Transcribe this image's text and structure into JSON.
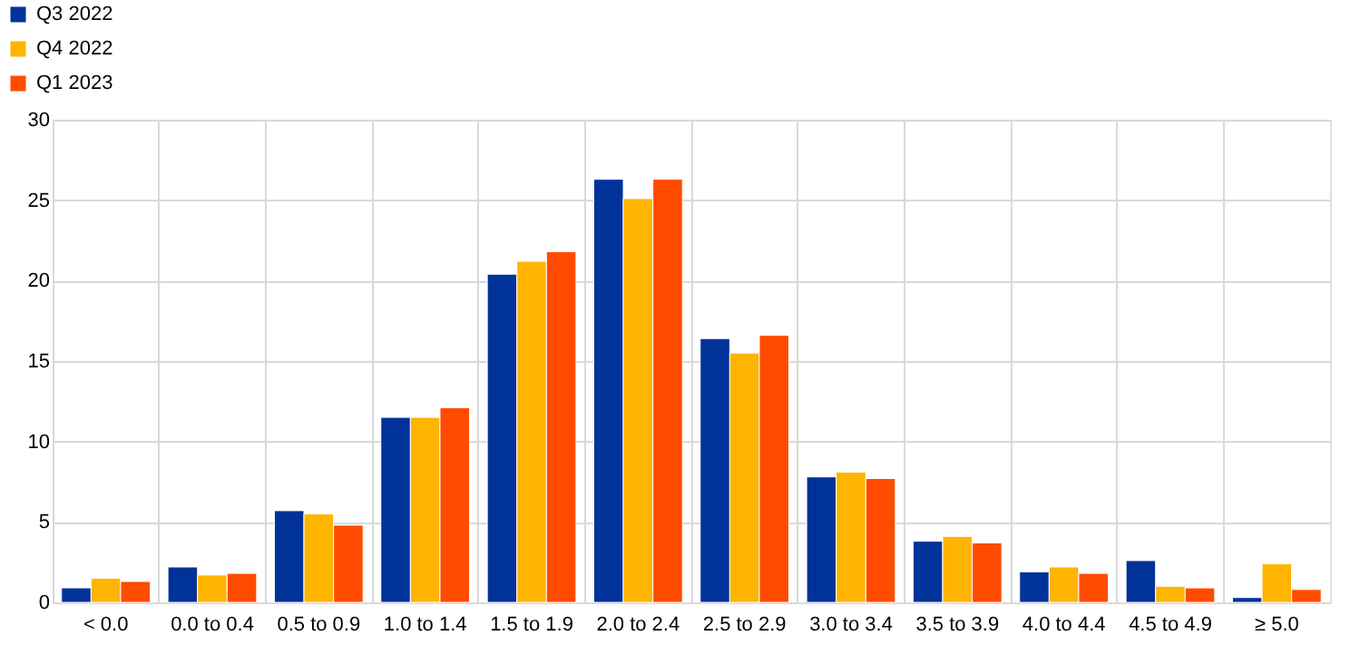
{
  "chart_data": {
    "type": "bar",
    "categories": [
      "< 0.0",
      "0.0 to 0.4",
      "0.5 to 0.9",
      "1.0 to 1.4",
      "1.5 to 1.9",
      "2.0 to 2.4",
      "2.5 to 2.9",
      "3.0 to 3.4",
      "3.5 to 3.9",
      "4.0 to 4.4",
      "4.5 to 4.9",
      "≥ 5.0"
    ],
    "series": [
      {
        "name": "Q3 2022",
        "color": "#003299",
        "values": [
          0.9,
          2.2,
          5.7,
          11.5,
          20.4,
          26.3,
          16.4,
          7.8,
          3.8,
          1.9,
          2.6,
          0.3
        ]
      },
      {
        "name": "Q4 2022",
        "color": "#ffb400",
        "values": [
          1.5,
          1.7,
          5.5,
          11.5,
          21.2,
          25.1,
          15.5,
          8.1,
          4.1,
          2.2,
          1.0,
          2.4
        ]
      },
      {
        "name": "Q1 2023",
        "color": "#ff4b00",
        "values": [
          1.3,
          1.8,
          4.8,
          12.1,
          21.8,
          26.3,
          16.6,
          7.7,
          3.7,
          1.8,
          0.9,
          0.8
        ]
      }
    ],
    "ylim": [
      0,
      30
    ],
    "yticks": [
      0,
      5,
      10,
      15,
      20,
      25,
      30
    ],
    "grid": true,
    "legend": "top left"
  }
}
